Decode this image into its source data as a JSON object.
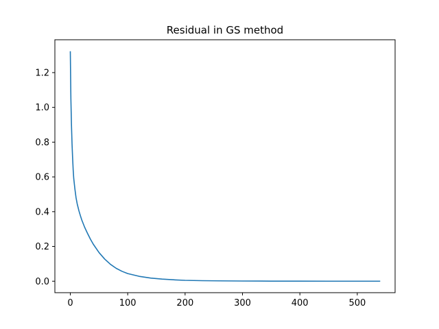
{
  "chart_data": {
    "type": "line",
    "title": "Residual in GS method",
    "xlabel": "",
    "ylabel": "",
    "xlim": [
      -26.9,
      565.9
    ],
    "ylim": [
      -0.066,
      1.389
    ],
    "xticks": [
      0,
      100,
      200,
      300,
      400,
      500
    ],
    "xtick_labels": [
      "0",
      "100",
      "200",
      "300",
      "400",
      "500"
    ],
    "yticks": [
      0.0,
      0.2,
      0.4,
      0.6,
      0.8,
      1.0,
      1.2
    ],
    "ytick_labels": [
      "0.0",
      "0.2",
      "0.4",
      "0.6",
      "0.8",
      "1.0",
      "1.2"
    ],
    "grid": false,
    "legend": "none",
    "series": [
      {
        "color": "#1f77b4",
        "x": [
          0,
          1,
          2,
          3,
          4,
          5,
          6,
          8,
          10,
          12,
          15,
          18,
          20,
          25,
          30,
          35,
          40,
          50,
          60,
          70,
          80,
          90,
          100,
          120,
          140,
          160,
          180,
          200,
          230,
          260,
          300,
          350,
          400,
          450,
          500,
          539
        ],
        "y": [
          1.32,
          1.05,
          0.9,
          0.79,
          0.71,
          0.64,
          0.59,
          0.53,
          0.48,
          0.445,
          0.405,
          0.372,
          0.352,
          0.31,
          0.275,
          0.242,
          0.213,
          0.165,
          0.127,
          0.097,
          0.074,
          0.057,
          0.044,
          0.028,
          0.018,
          0.012,
          0.008,
          0.005,
          0.003,
          0.002,
          0.001,
          0.0005,
          0.0002,
          0.0001,
          5e-05,
          3e-05
        ]
      }
    ]
  }
}
